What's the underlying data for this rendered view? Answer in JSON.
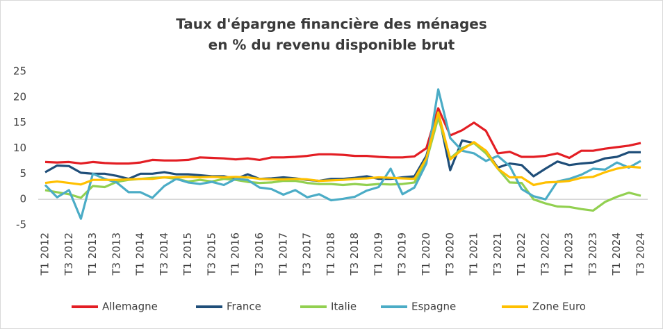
{
  "chart_data": {
    "type": "line",
    "title": "Taux d'épargne financière des ménages",
    "subtitle": "en % du revenu disponible brut",
    "categories": [
      "T1 2012",
      null,
      "T3 2012",
      null,
      "T1 2013",
      null,
      "T3 2013",
      null,
      "T1 2014",
      null,
      "T3 2014",
      null,
      "T1 2015",
      null,
      "T3 2015",
      null,
      "T1 2016",
      null,
      "T3 2016",
      null,
      "T1 2017",
      null,
      "T3 2017",
      null,
      "T1 2018",
      null,
      "T3 2018",
      null,
      "T1 2019",
      null,
      "T3 2019",
      null,
      "T1 2020",
      null,
      "T3 2020",
      null,
      "T1 2021",
      null,
      "T3 2021",
      null,
      "T1 2022",
      null,
      "T3 2022",
      null,
      "T1 2023",
      null,
      "T3 2023",
      null,
      "T1 2024",
      null,
      "T3 2024"
    ],
    "series": [
      {
        "name": "Allemagne",
        "color": "#e31e24",
        "values": [
          7.3,
          7.2,
          7.3,
          7.0,
          7.3,
          7.1,
          7.0,
          7.0,
          7.2,
          7.7,
          7.6,
          7.6,
          7.7,
          8.2,
          8.1,
          8.0,
          7.8,
          8.0,
          7.7,
          8.2,
          8.2,
          8.3,
          8.5,
          8.8,
          8.8,
          8.7,
          8.5,
          8.5,
          8.3,
          8.2,
          8.2,
          8.4,
          10.0,
          17.8,
          12.5,
          13.5,
          15.0,
          13.4,
          9.0,
          9.3,
          8.3,
          8.3,
          8.5,
          9.0,
          8.1,
          9.5,
          9.5,
          9.9,
          10.2,
          10.5,
          11.0
        ]
      },
      {
        "name": "France",
        "color": "#1f4e79",
        "values": [
          5.3,
          6.6,
          6.5,
          5.2,
          5.0,
          5.0,
          4.6,
          4.0,
          5.0,
          5.0,
          5.3,
          4.9,
          4.9,
          4.7,
          4.5,
          4.5,
          4.0,
          4.9,
          4.0,
          4.1,
          4.3,
          4.1,
          3.8,
          3.6,
          4.0,
          4.0,
          4.2,
          4.5,
          4.0,
          4.0,
          4.3,
          4.5,
          8.5,
          17.0,
          5.7,
          11.5,
          11.0,
          9.5,
          6.2,
          7.0,
          6.7,
          4.5,
          6.0,
          7.4,
          6.7,
          7.0,
          7.2,
          8.0,
          8.3,
          9.2,
          9.2
        ]
      },
      {
        "name": "Italie",
        "color": "#92d050",
        "values": [
          1.8,
          1.4,
          1.0,
          0.3,
          2.6,
          2.4,
          3.4,
          3.8,
          4.0,
          4.2,
          4.3,
          4.0,
          3.5,
          3.8,
          3.5,
          4.0,
          3.8,
          3.4,
          3.2,
          3.3,
          3.6,
          3.6,
          3.2,
          3.0,
          3.0,
          2.8,
          3.0,
          2.8,
          3.0,
          2.9,
          3.0,
          3.3,
          7.5,
          16.0,
          8.0,
          10.0,
          11.0,
          9.0,
          6.0,
          3.3,
          3.2,
          0.0,
          -0.8,
          -1.4,
          -1.5,
          -1.9,
          -2.2,
          -0.5,
          0.5,
          1.3,
          0.7
        ]
      },
      {
        "name": "Espagne",
        "color": "#4bacc6",
        "values": [
          2.8,
          0.4,
          1.8,
          -3.8,
          5.0,
          4.0,
          3.3,
          1.4,
          1.4,
          0.3,
          2.6,
          4.0,
          3.3,
          3.0,
          3.4,
          2.8,
          4.0,
          3.8,
          2.3,
          2.0,
          0.9,
          1.8,
          0.4,
          1.0,
          -0.2,
          0.1,
          0.5,
          1.7,
          2.4,
          6.0,
          1.0,
          2.3,
          7.0,
          21.5,
          12.0,
          9.5,
          9.0,
          7.5,
          8.5,
          6.5,
          2.0,
          0.6,
          0.0,
          3.5,
          4.0,
          4.8,
          6.0,
          5.8,
          7.2,
          6.2,
          7.5
        ]
      },
      {
        "name": "Zone Euro",
        "color": "#ffc000",
        "values": [
          3.2,
          3.5,
          3.2,
          2.9,
          3.8,
          3.8,
          3.8,
          3.9,
          4.0,
          4.0,
          4.3,
          4.3,
          4.4,
          4.3,
          4.4,
          4.3,
          4.4,
          4.3,
          4.0,
          3.9,
          3.9,
          4.0,
          3.9,
          3.6,
          3.7,
          3.8,
          4.0,
          4.1,
          4.3,
          4.2,
          4.1,
          4.0,
          8.0,
          17.0,
          7.8,
          9.7,
          11.2,
          9.5,
          6.0,
          4.3,
          4.3,
          2.8,
          3.3,
          3.4,
          3.6,
          4.2,
          4.4,
          5.3,
          6.0,
          6.4,
          6.2
        ]
      }
    ],
    "ylim": [
      -5,
      25
    ],
    "yticks": [
      -5,
      0,
      5,
      10,
      15,
      20,
      25
    ],
    "grid": false,
    "legend": "bottom"
  }
}
